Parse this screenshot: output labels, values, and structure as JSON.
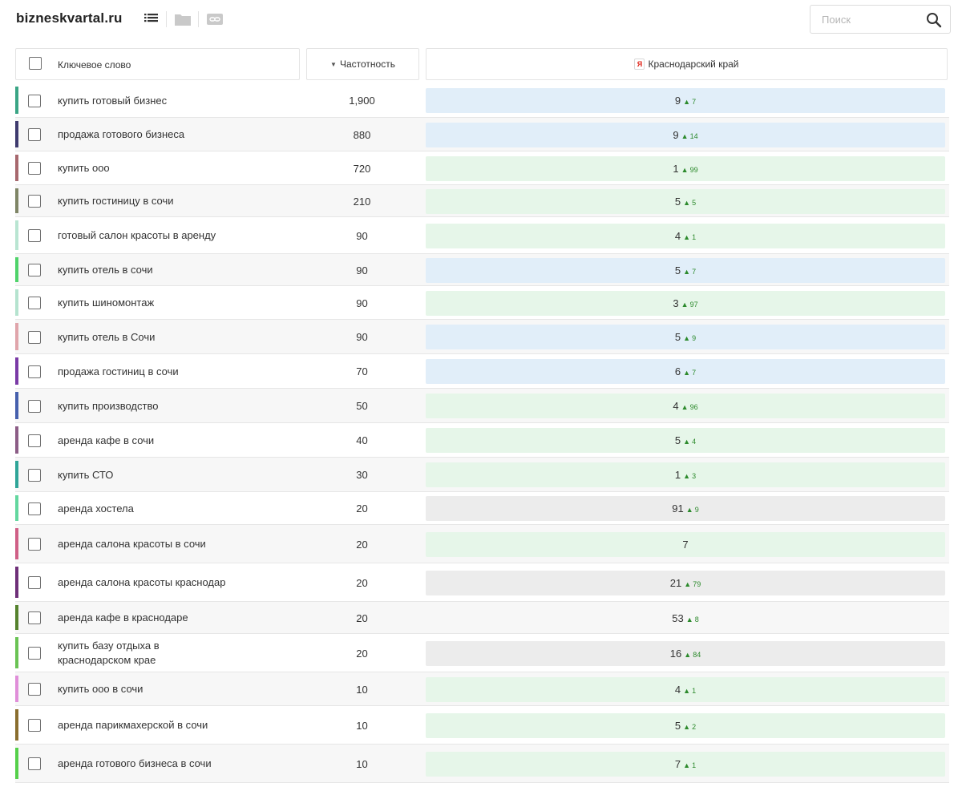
{
  "site": "bizneskvartal.ru",
  "search": {
    "placeholder": "Поиск",
    "value": ""
  },
  "columns": {
    "keyword": "Ключевое слово",
    "frequency": "Частотность",
    "region": "Краснодарский край",
    "region_engine_glyph": "Я"
  },
  "colors": {
    "blue_cell": "#e1eef9",
    "green_cell": "#e6f6e9",
    "gray_cell": "#ececec",
    "trend_up": "#2c8a2c"
  },
  "rows": [
    {
      "keyword": "купить готовый бизнес",
      "frequency": "1,900",
      "position": "9",
      "change": "7",
      "marker": "#3aa585",
      "tone": "blue"
    },
    {
      "keyword": "продажа готового бизнеса",
      "frequency": "880",
      "position": "9",
      "change": "14",
      "marker": "#3e3a6e",
      "tone": "blue"
    },
    {
      "keyword": "купить ооо",
      "frequency": "720",
      "position": "1",
      "change": "99",
      "marker": "#a7686e",
      "tone": "green"
    },
    {
      "keyword": "купить гостиницу в сочи",
      "frequency": "210",
      "position": "5",
      "change": "5",
      "marker": "#7f8566",
      "tone": "green"
    },
    {
      "keyword": "готовый салон красоты в аренду",
      "frequency": "90",
      "position": "4",
      "change": "1",
      "marker": "#b9e5d2",
      "tone": "green"
    },
    {
      "keyword": "купить отель в сочи",
      "frequency": "90",
      "position": "5",
      "change": "7",
      "marker": "#4fd36a",
      "tone": "blue"
    },
    {
      "keyword": "купить шиномонтаж",
      "frequency": "90",
      "position": "3",
      "change": "97",
      "marker": "#b5e3cf",
      "tone": "green"
    },
    {
      "keyword": "купить отель в Сочи",
      "frequency": "90",
      "position": "5",
      "change": "9",
      "marker": "#e0a5ab",
      "tone": "blue"
    },
    {
      "keyword": "продажа гостиниц в сочи",
      "frequency": "70",
      "position": "6",
      "change": "7",
      "marker": "#7a3aa6",
      "tone": "blue"
    },
    {
      "keyword": "купить производство",
      "frequency": "50",
      "position": "4",
      "change": "96",
      "marker": "#4660ad",
      "tone": "green"
    },
    {
      "keyword": "аренда кафе в сочи",
      "frequency": "40",
      "position": "5",
      "change": "4",
      "marker": "#8c5d86",
      "tone": "green"
    },
    {
      "keyword": "купить СТО",
      "frequency": "30",
      "position": "1",
      "change": "3",
      "marker": "#2fa598",
      "tone": "green"
    },
    {
      "keyword": "аренда хостела",
      "frequency": "20",
      "position": "91",
      "change": "9",
      "marker": "#63d79f",
      "tone": "gray"
    },
    {
      "keyword": "аренда салона красоты в сочи",
      "frequency": "20",
      "position": "7",
      "change": "",
      "marker": "#cf5f86",
      "tone": "green"
    },
    {
      "keyword": "аренда салона красоты краснодар",
      "frequency": "20",
      "position": "21",
      "change": "79",
      "marker": "#6e2f78",
      "tone": "gray"
    },
    {
      "keyword": "аренда кафе в краснодаре",
      "frequency": "20",
      "position": "53",
      "change": "8",
      "marker": "#55822d",
      "tone": "none"
    },
    {
      "keyword": "купить базу отдыха в краснодарском крае",
      "frequency": "20",
      "position": "16",
      "change": "84",
      "marker": "#6ac354",
      "tone": "gray"
    },
    {
      "keyword": "купить ооо в сочи",
      "frequency": "10",
      "position": "4",
      "change": "1",
      "marker": "#e08ed9",
      "tone": "green"
    },
    {
      "keyword": "аренда парикмахерской в сочи",
      "frequency": "10",
      "position": "5",
      "change": "2",
      "marker": "#8a6e2e",
      "tone": "green"
    },
    {
      "keyword": "аренда готового бизнеса в сочи",
      "frequency": "10",
      "position": "7",
      "change": "1",
      "marker": "#55d04a",
      "tone": "green"
    }
  ]
}
